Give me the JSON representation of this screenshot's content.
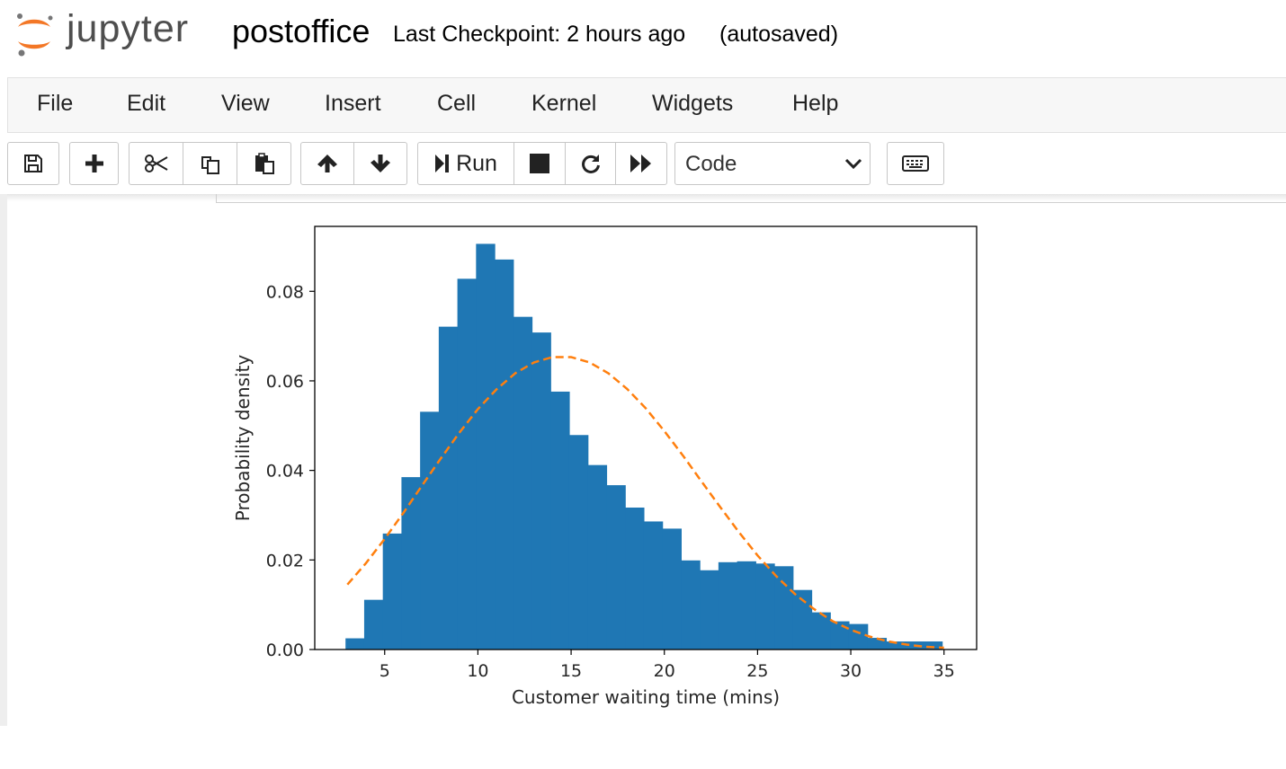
{
  "header": {
    "logo_text": "jupyter",
    "notebook_name": "postoffice",
    "checkpoint": "Last Checkpoint: 2 hours ago",
    "autosave": "(autosaved)"
  },
  "menubar": {
    "items": [
      "File",
      "Edit",
      "View",
      "Insert",
      "Cell",
      "Kernel",
      "Widgets",
      "Help"
    ]
  },
  "toolbar": {
    "run_label": "Run",
    "cell_type": "Code",
    "icons": [
      "save-icon",
      "plus-icon",
      "scissors-icon",
      "copy-icon",
      "paste-icon",
      "arrow-up-icon",
      "arrow-down-icon",
      "step-run-icon",
      "stop-icon",
      "restart-icon",
      "fast-forward-icon",
      "keyboard-icon"
    ]
  },
  "colors": {
    "bar": "#1f77b4",
    "curve": "#ff7f0e",
    "logo_orange": "#F37726"
  },
  "chart_data": {
    "type": "bar",
    "xlabel": "Customer waiting time (mins)",
    "ylabel": "Probability density",
    "xlim": [
      1.25,
      36.75
    ],
    "ylim": [
      0,
      0.0945
    ],
    "xticks": [
      5,
      10,
      15,
      20,
      25,
      30,
      35
    ],
    "yticks": [
      0.0,
      0.02,
      0.04,
      0.06,
      0.08
    ],
    "ytick_labels": [
      "0.00",
      "0.02",
      "0.04",
      "0.06",
      "0.08"
    ],
    "histogram": {
      "bin_edges": [
        2.9,
        3.9,
        4.9,
        5.9,
        6.9,
        7.9,
        8.9,
        9.9,
        10.9,
        11.9,
        12.9,
        13.9,
        14.9,
        15.9,
        16.9,
        17.9,
        18.9,
        19.9,
        20.9,
        21.9,
        22.9,
        23.9,
        24.9,
        25.9,
        26.9,
        27.9,
        28.9,
        29.9,
        30.9,
        31.9,
        32.9,
        33.9,
        34.9
      ],
      "values": [
        0.0025,
        0.0111,
        0.0259,
        0.0385,
        0.0531,
        0.0721,
        0.0828,
        0.0906,
        0.0871,
        0.0743,
        0.0708,
        0.0576,
        0.0479,
        0.0412,
        0.0367,
        0.0317,
        0.0286,
        0.027,
        0.0199,
        0.0177,
        0.0195,
        0.0197,
        0.0192,
        0.0186,
        0.0133,
        0.0083,
        0.0063,
        0.0057,
        0.0026,
        0.0018,
        0.0018,
        0.0018
      ]
    },
    "curve": {
      "style": "dashed",
      "x": [
        3,
        4,
        5,
        6,
        7,
        8,
        9,
        10,
        11,
        12,
        13,
        14,
        15,
        16,
        17,
        18,
        19,
        20,
        21,
        22,
        23,
        24,
        25,
        26,
        27,
        28,
        29,
        30,
        31,
        32,
        33,
        34,
        35
      ],
      "y": [
        0.0145,
        0.0193,
        0.0247,
        0.0305,
        0.0366,
        0.0426,
        0.0484,
        0.0537,
        0.0581,
        0.0617,
        0.0641,
        0.0653,
        0.0653,
        0.0641,
        0.0617,
        0.0582,
        0.0539,
        0.0488,
        0.0433,
        0.0375,
        0.0318,
        0.0262,
        0.021,
        0.0164,
        0.0124,
        0.0091,
        0.0064,
        0.0044,
        0.0029,
        0.0018,
        0.0011,
        0.0006,
        0.0004
      ]
    },
    "grid": false,
    "legend": "none"
  }
}
